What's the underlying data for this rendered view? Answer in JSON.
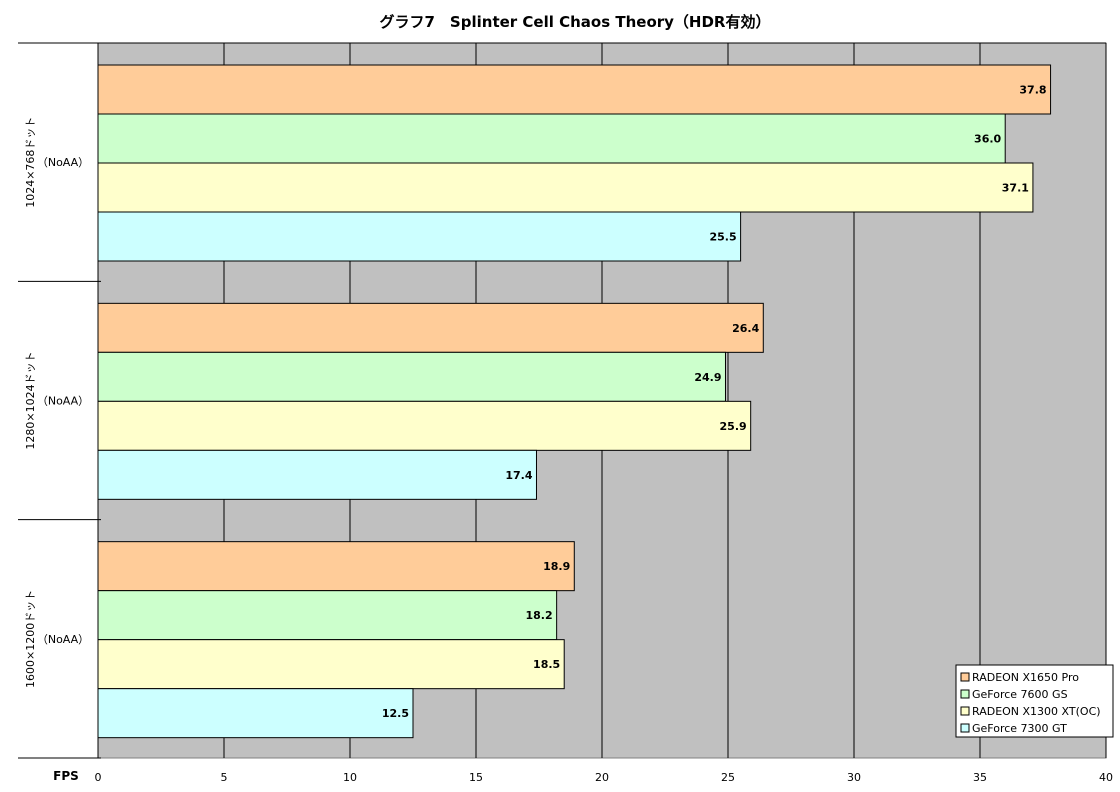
{
  "chart_data": {
    "type": "bar",
    "orientation": "horizontal",
    "title": "グラフ7　Splinter Cell Chaos Theory（HDR有効）",
    "xlabel": "FPS",
    "xlim": [
      0,
      40
    ],
    "xticks": [
      0,
      5,
      10,
      15,
      20,
      25,
      30,
      35,
      40
    ],
    "grid": true,
    "legend_position": "bottom-right",
    "categories": [
      {
        "resolution": "1024×768ドット",
        "aa": "（NoAA）"
      },
      {
        "resolution": "1280×1024ドット",
        "aa": "（NoAA）"
      },
      {
        "resolution": "1600×1200ドット",
        "aa": "（NoAA）"
      }
    ],
    "series": [
      {
        "name": "RADEON X1650 Pro",
        "color": "#ffcc99",
        "values": [
          37.8,
          26.4,
          18.9
        ],
        "labels": [
          "37.8",
          "26.4",
          "18.9"
        ]
      },
      {
        "name": "GeForce 7600 GS",
        "color": "#ccffcc",
        "values": [
          36.0,
          24.9,
          18.2
        ],
        "labels": [
          "36.0",
          "24.9",
          "18.2"
        ]
      },
      {
        "name": "RADEON X1300 XT(OC)",
        "color": "#ffffcc",
        "values": [
          37.1,
          25.9,
          18.5
        ],
        "labels": [
          "37.1",
          "25.9",
          "18.5"
        ]
      },
      {
        "name": "GeForce 7300 GT",
        "color": "#ccffff",
        "values": [
          25.5,
          17.4,
          12.5
        ],
        "labels": [
          "25.5",
          "17.4",
          "12.5"
        ]
      }
    ],
    "colors": {
      "plot_background": "#c0c0c0",
      "gridline": "#000000"
    }
  }
}
